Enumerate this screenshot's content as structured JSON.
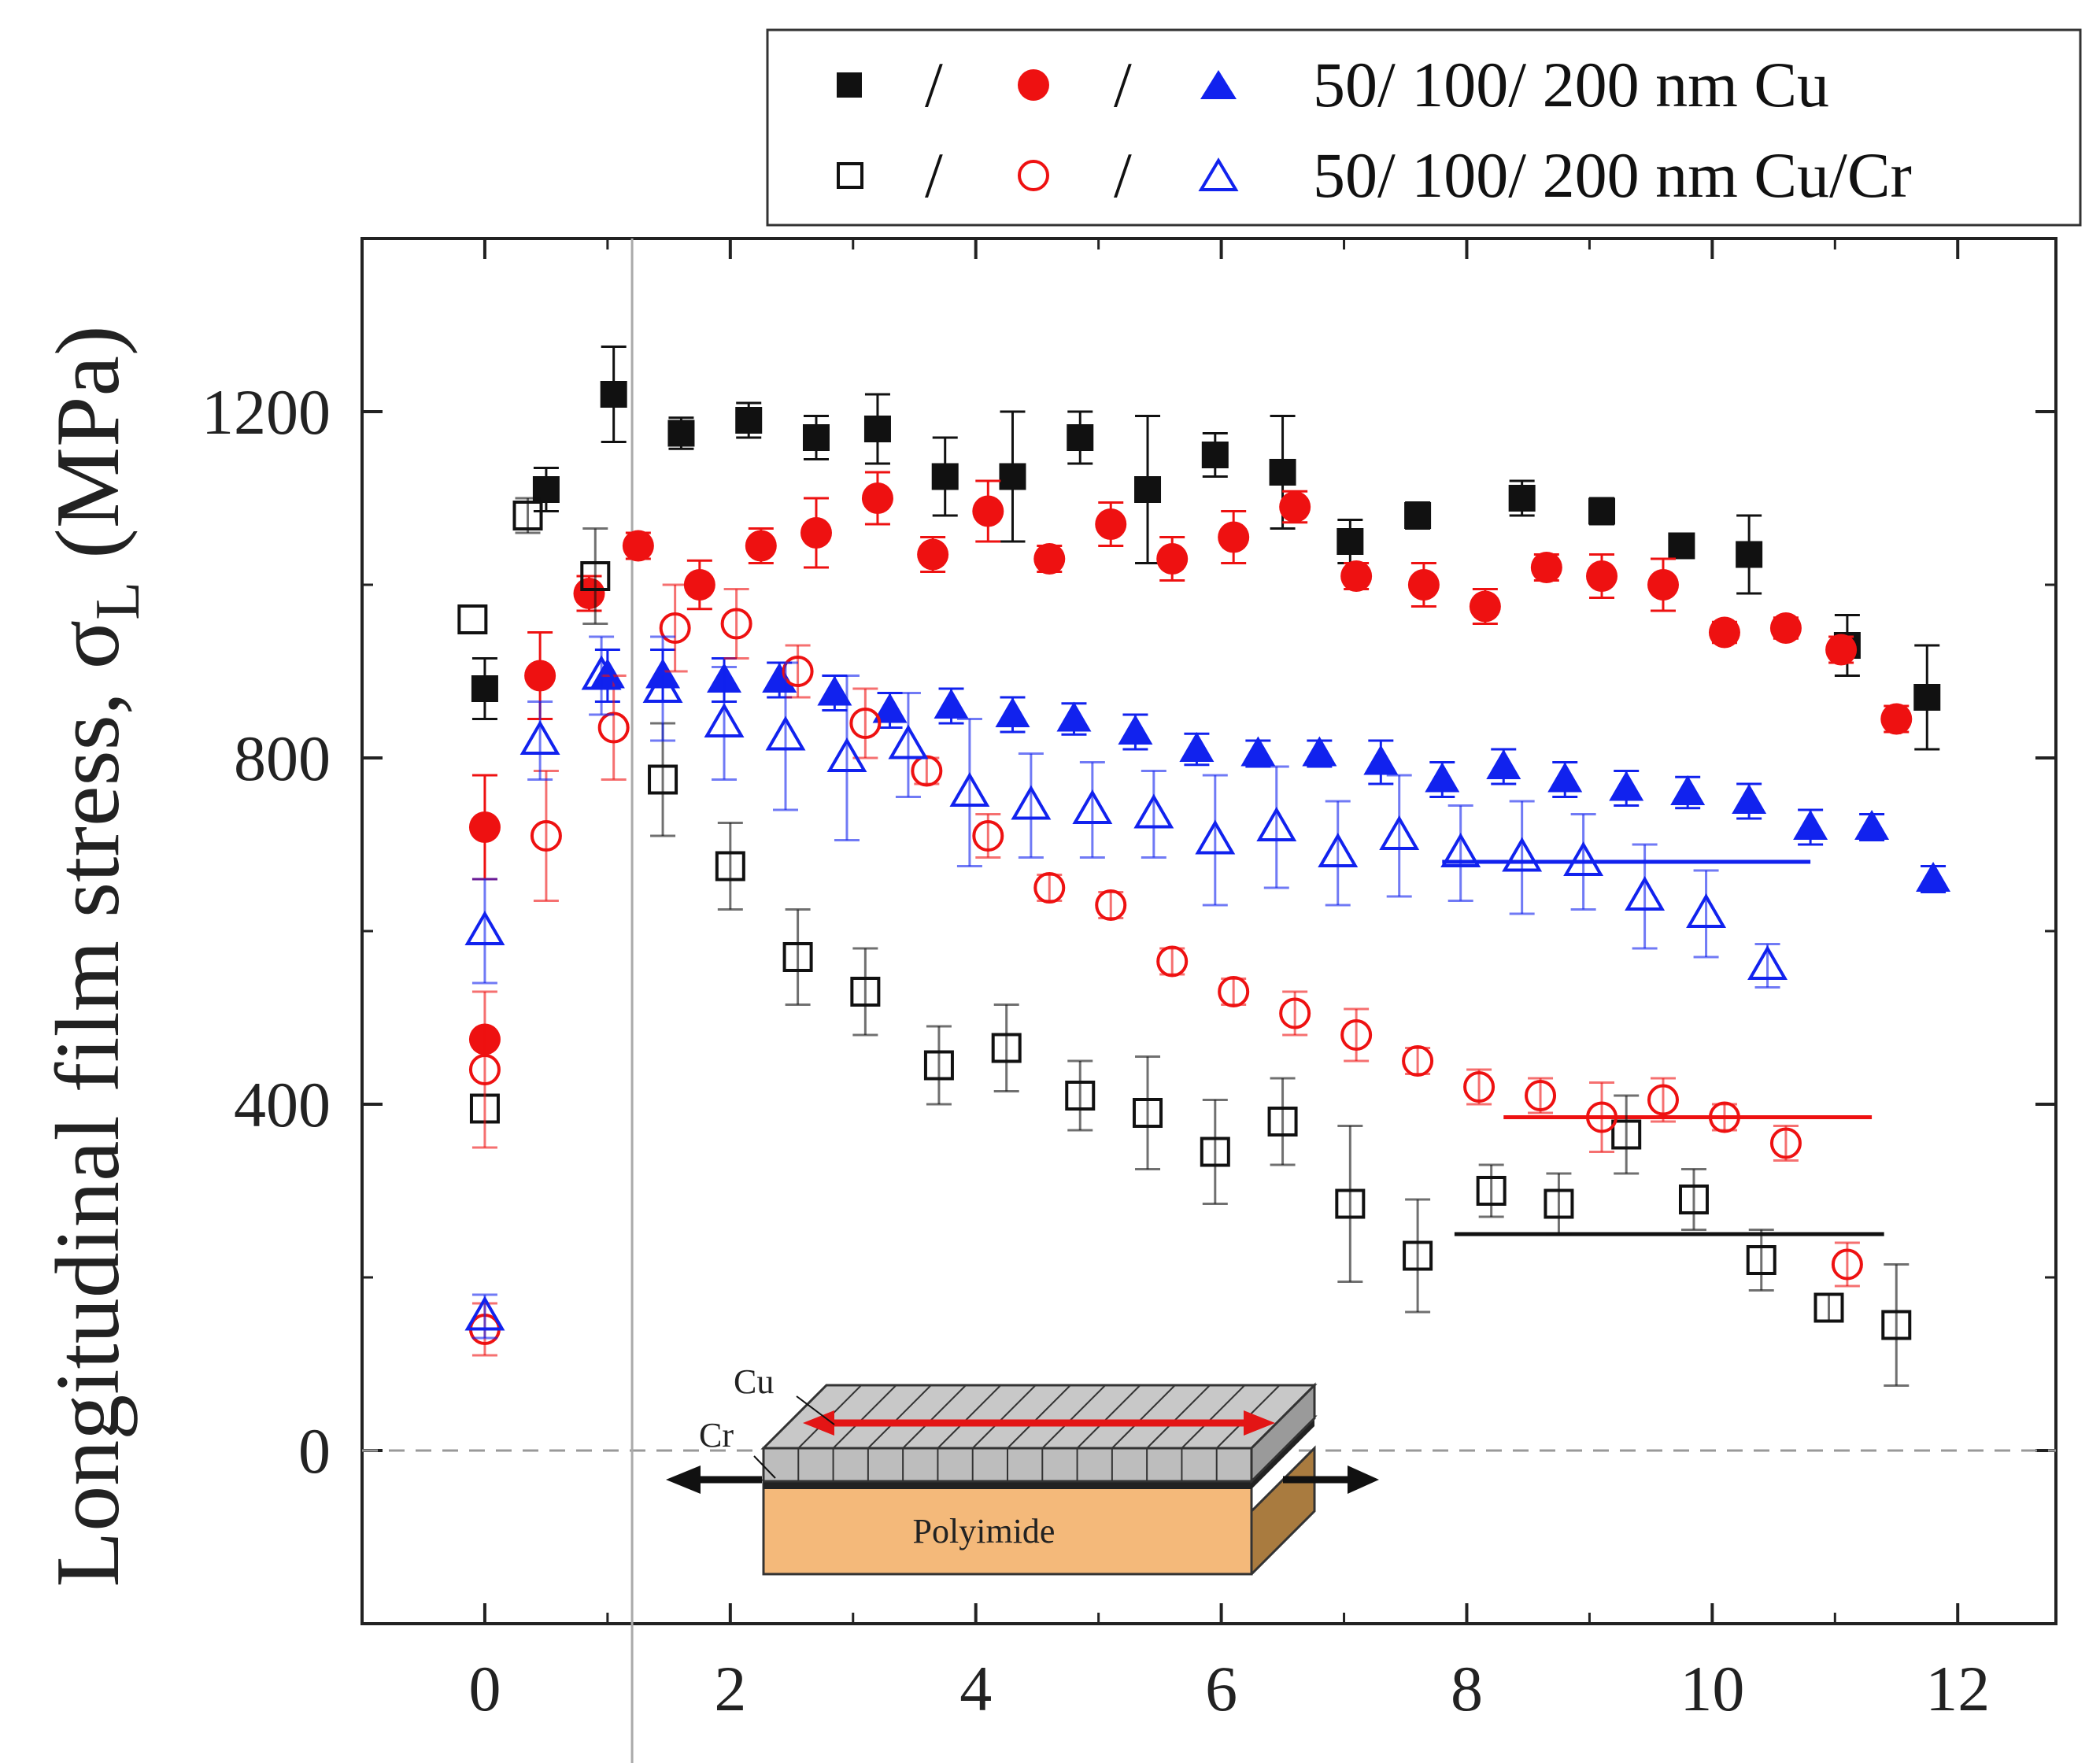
{
  "chart_data": {
    "type": "scatter",
    "title": "",
    "xlabel": "",
    "ylabel": "Longitudinal film stress, σL (MPa)",
    "ylabel_main": "Longitudinal film stress, σ",
    "ylabel_sub": "L",
    "ylabel_unit": " (MPa)",
    "xlim": [
      -1.0,
      12.8
    ],
    "ylim": [
      -200,
      1400
    ],
    "xticks": [
      0,
      2,
      4,
      6,
      8,
      10,
      12
    ],
    "yticks": [
      0,
      400,
      800,
      1200
    ],
    "vline_x": 1.2,
    "zero_line": 0,
    "legend": {
      "position": "top-right",
      "rows": [
        {
          "text": "50/ 100/ 200 nm Cu",
          "separators": [
            "/",
            "/"
          ],
          "filled": true
        },
        {
          "text": "50/ 100/ 200 nm Cu/Cr",
          "separators": [
            "/",
            "/"
          ],
          "filled": false
        }
      ]
    },
    "inset": {
      "cu_label": "Cu",
      "cr_label": "Cr",
      "substrate_label": "Polyimide"
    },
    "series": [
      {
        "name": "50 nm Cu",
        "marker": "square",
        "filled": true,
        "color": "#111111",
        "points": [
          [
            0.0,
            880,
            35
          ],
          [
            0.5,
            1110,
            25
          ],
          [
            1.05,
            1220,
            55
          ],
          [
            1.6,
            1175,
            18
          ],
          [
            2.15,
            1190,
            20
          ],
          [
            2.7,
            1170,
            25
          ],
          [
            3.2,
            1180,
            40
          ],
          [
            3.75,
            1125,
            45
          ],
          [
            4.3,
            1125,
            75
          ],
          [
            4.85,
            1170,
            30
          ],
          [
            5.4,
            1110,
            85
          ],
          [
            5.95,
            1150,
            25
          ],
          [
            6.5,
            1130,
            65
          ],
          [
            7.05,
            1050,
            25
          ],
          [
            7.6,
            1080,
            15
          ],
          [
            8.45,
            1100,
            20
          ],
          [
            9.1,
            1085,
            15
          ],
          [
            9.75,
            1045,
            10
          ],
          [
            10.3,
            1035,
            45
          ],
          [
            11.1,
            930,
            35
          ],
          [
            11.75,
            870,
            60
          ]
        ]
      },
      {
        "name": "100 nm Cu",
        "marker": "circle",
        "filled": true,
        "color": "#ee1111",
        "points": [
          [
            0.0,
            720,
            60
          ],
          [
            0.0,
            475,
            0
          ],
          [
            0.45,
            895,
            50
          ],
          [
            0.85,
            990,
            20
          ],
          [
            1.25,
            1045,
            15
          ],
          [
            1.75,
            1000,
            28
          ],
          [
            2.25,
            1045,
            20
          ],
          [
            2.7,
            1060,
            40
          ],
          [
            3.2,
            1100,
            30
          ],
          [
            3.65,
            1035,
            20
          ],
          [
            4.1,
            1085,
            35
          ],
          [
            4.6,
            1030,
            15
          ],
          [
            5.1,
            1070,
            25
          ],
          [
            5.6,
            1030,
            25
          ],
          [
            6.1,
            1055,
            30
          ],
          [
            6.6,
            1090,
            18
          ],
          [
            7.1,
            1010,
            15
          ],
          [
            7.65,
            1000,
            25
          ],
          [
            8.15,
            975,
            20
          ],
          [
            8.65,
            1020,
            15
          ],
          [
            9.1,
            1010,
            25
          ],
          [
            9.6,
            1000,
            30
          ],
          [
            10.1,
            945,
            12
          ],
          [
            10.6,
            950,
            12
          ],
          [
            11.05,
            925,
            15
          ],
          [
            11.5,
            845,
            15
          ]
        ]
      },
      {
        "name": "200 nm Cu",
        "marker": "triangle",
        "filled": true,
        "color": "#1122ee",
        "points": [
          [
            1.0,
            895,
            30
          ],
          [
            1.45,
            895,
            30
          ],
          [
            1.95,
            890,
            25
          ],
          [
            2.4,
            890,
            20
          ],
          [
            2.85,
            875,
            20
          ],
          [
            3.3,
            855,
            20
          ],
          [
            3.8,
            860,
            20
          ],
          [
            4.3,
            850,
            20
          ],
          [
            4.8,
            845,
            18
          ],
          [
            5.3,
            830,
            20
          ],
          [
            5.8,
            810,
            18
          ],
          [
            6.3,
            805,
            15
          ],
          [
            6.8,
            805,
            15
          ],
          [
            7.3,
            795,
            25
          ],
          [
            7.8,
            775,
            20
          ],
          [
            8.3,
            790,
            20
          ],
          [
            8.8,
            775,
            20
          ],
          [
            9.3,
            765,
            20
          ],
          [
            9.8,
            760,
            18
          ],
          [
            10.3,
            750,
            20
          ],
          [
            10.8,
            720,
            20
          ],
          [
            11.3,
            720,
            15
          ],
          [
            11.8,
            660,
            15
          ]
        ]
      },
      {
        "name": "50 nm Cu/Cr",
        "marker": "square",
        "filled": false,
        "color": "#111111",
        "points": [
          [
            -0.1,
            960,
            0
          ],
          [
            0.35,
            1080,
            20
          ],
          [
            0.9,
            1010,
            55
          ],
          [
            1.45,
            775,
            65
          ],
          [
            2.0,
            675,
            50
          ],
          [
            2.55,
            570,
            55
          ],
          [
            3.1,
            530,
            50
          ],
          [
            3.7,
            445,
            45
          ],
          [
            4.25,
            465,
            50
          ],
          [
            4.85,
            410,
            40
          ],
          [
            5.4,
            390,
            65
          ],
          [
            5.95,
            345,
            60
          ],
          [
            6.5,
            380,
            50
          ],
          [
            7.05,
            285,
            90
          ],
          [
            7.6,
            225,
            65
          ],
          [
            8.2,
            300,
            30
          ],
          [
            8.75,
            285,
            35
          ],
          [
            9.3,
            365,
            45
          ],
          [
            9.85,
            290,
            35
          ],
          [
            10.4,
            220,
            35
          ],
          [
            10.95,
            165,
            15
          ],
          [
            11.5,
            145,
            70
          ],
          [
            0.0,
            395,
            0
          ]
        ]
      },
      {
        "name": "100 nm Cu/Cr",
        "marker": "circle",
        "filled": false,
        "color": "#ee1111",
        "points": [
          [
            0.0,
            440,
            90
          ],
          [
            0.0,
            140,
            30
          ],
          [
            0.5,
            710,
            75
          ],
          [
            1.05,
            835,
            60
          ],
          [
            1.55,
            950,
            50
          ],
          [
            2.05,
            955,
            40
          ],
          [
            2.55,
            900,
            30
          ],
          [
            3.1,
            840,
            40
          ],
          [
            3.6,
            785,
            15
          ],
          [
            4.1,
            710,
            25
          ],
          [
            4.6,
            650,
            15
          ],
          [
            5.1,
            630,
            15
          ],
          [
            5.6,
            565,
            15
          ],
          [
            6.1,
            530,
            15
          ],
          [
            6.6,
            505,
            25
          ],
          [
            7.1,
            480,
            30
          ],
          [
            7.6,
            450,
            15
          ],
          [
            8.1,
            420,
            20
          ],
          [
            8.6,
            410,
            20
          ],
          [
            9.1,
            385,
            40
          ],
          [
            9.6,
            405,
            25
          ],
          [
            10.1,
            385,
            15
          ],
          [
            10.6,
            355,
            20
          ],
          [
            11.1,
            215,
            25
          ]
        ]
      },
      {
        "name": "200 nm Cu/Cr",
        "marker": "triangle",
        "filled": false,
        "color": "#1122ee",
        "points": [
          [
            0.0,
            600,
            60
          ],
          [
            0.0,
            155,
            25
          ],
          [
            0.45,
            820,
            45
          ],
          [
            0.95,
            895,
            45
          ],
          [
            1.45,
            880,
            60
          ],
          [
            1.95,
            840,
            65
          ],
          [
            2.45,
            825,
            85
          ],
          [
            2.95,
            800,
            95
          ],
          [
            3.45,
            815,
            60
          ],
          [
            3.95,
            760,
            85
          ],
          [
            4.45,
            745,
            60
          ],
          [
            4.95,
            740,
            55
          ],
          [
            5.45,
            735,
            50
          ],
          [
            5.95,
            705,
            75
          ],
          [
            6.45,
            720,
            70
          ],
          [
            6.95,
            690,
            60
          ],
          [
            7.45,
            710,
            70
          ],
          [
            7.95,
            690,
            55
          ],
          [
            8.45,
            685,
            65
          ],
          [
            8.95,
            680,
            55
          ],
          [
            9.45,
            640,
            60
          ],
          [
            9.95,
            620,
            50
          ],
          [
            10.45,
            560,
            25
          ]
        ]
      }
    ],
    "plateau_lines": [
      {
        "series": "200 nm Cu/Cr",
        "x_start": 7.8,
        "x_end": 10.8,
        "y": 680,
        "color": "#1122ee"
      },
      {
        "series": "100 nm Cu/Cr",
        "x_start": 8.3,
        "x_end": 11.3,
        "y": 385,
        "color": "#ee1111"
      },
      {
        "series": "50 nm Cu/Cr",
        "x_start": 7.9,
        "x_end": 11.4,
        "y": 250,
        "color": "#111111"
      }
    ]
  }
}
